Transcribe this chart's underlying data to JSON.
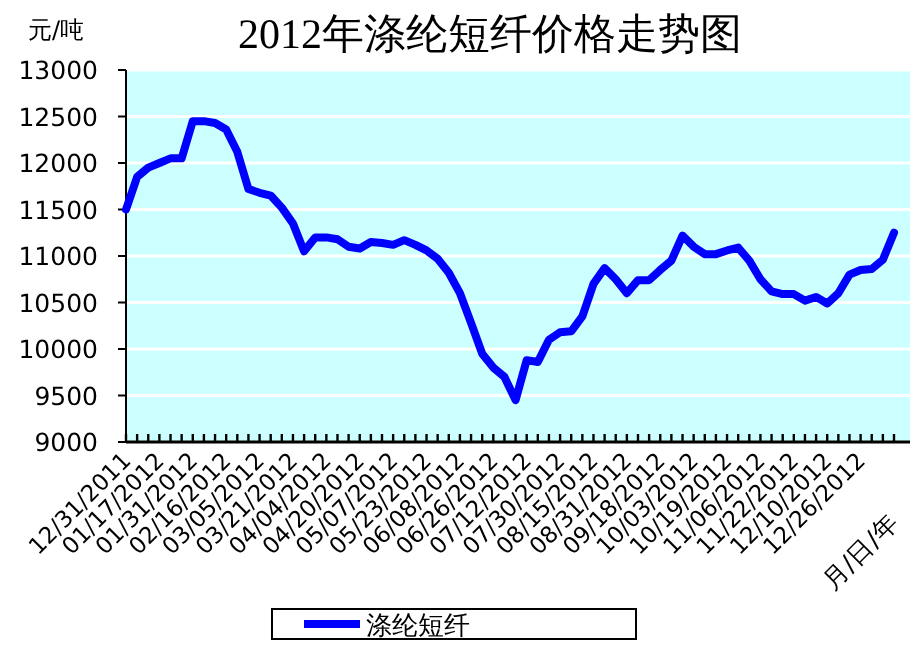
{
  "chart_data": {
    "type": "line",
    "title": "2012年涤纶短纤价格走势图",
    "ylabel": "元/吨",
    "xlabel": "月/日/年",
    "categories": [
      "12/31/2011",
      null,
      null,
      "01/17/2012",
      null,
      null,
      "01/31/2012",
      null,
      null,
      "02/16/2012",
      null,
      null,
      "03/05/2012",
      null,
      null,
      "03/21/2012",
      null,
      null,
      "04/04/2012",
      null,
      null,
      "04/20/2012",
      null,
      null,
      "05/07/2012",
      null,
      null,
      "05/23/2012",
      null,
      null,
      "06/08/2012",
      null,
      null,
      "06/26/2012",
      null,
      null,
      "07/12/2012",
      null,
      null,
      "07/30/2012",
      null,
      null,
      "08/15/2012",
      null,
      null,
      "08/31/2012",
      null,
      null,
      "09/18/2012",
      null,
      null,
      "10/03/2012",
      null,
      null,
      "10/19/2012",
      null,
      null,
      "11/06/2012",
      null,
      null,
      "11/22/2012",
      null,
      null,
      "12/10/2012",
      null,
      null,
      "12/26/2012",
      null,
      null,
      null
    ],
    "series": [
      {
        "name": "涤纶短纤",
        "color": "#0000ff",
        "values": [
          11500,
          11850,
          11950,
          12000,
          12050,
          12050,
          12450,
          12450,
          12430,
          12360,
          12120,
          11720,
          11680,
          11650,
          11520,
          11350,
          11050,
          11200,
          11200,
          11180,
          11100,
          11080,
          11150,
          11140,
          11120,
          11170,
          11120,
          11060,
          10970,
          10820,
          10600,
          10280,
          9950,
          9800,
          9700,
          9450,
          9880,
          9860,
          10100,
          10180,
          10190,
          10350,
          10700,
          10870,
          10750,
          10600,
          10740,
          10740,
          10850,
          10950,
          11220,
          11100,
          11020,
          11020,
          11060,
          11090,
          10950,
          10750,
          10620,
          10590,
          10590,
          10520,
          10560,
          10490,
          10600,
          10800,
          10850,
          10860,
          10960,
          11250
        ]
      }
    ],
    "ylim": [
      9000,
      13000
    ],
    "yticks": [
      9000,
      9500,
      10000,
      10500,
      11000,
      11500,
      12000,
      12500,
      13000
    ],
    "grid": "y",
    "legend": "bottom"
  }
}
